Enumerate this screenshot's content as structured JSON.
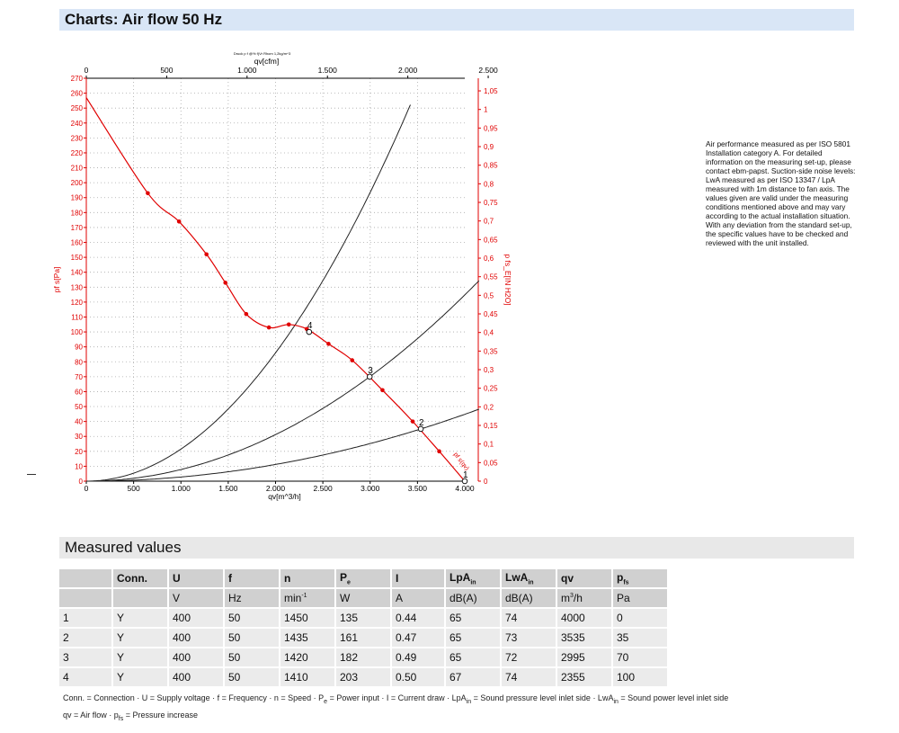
{
  "header": {
    "title": "Charts: Air flow 50 Hz"
  },
  "chart_data": {
    "type": "line",
    "top_caption": "Druck p f @% f(Vr Rhom 1,2kg/m^3",
    "xlabel": "qv[m^3/h]",
    "x2label": "qv[cfm]",
    "ylabel": "pf s[Pa]",
    "y2label": "p fs_E[IN H2O]",
    "xlim": [
      0,
      4000
    ],
    "ylim": [
      0,
      270
    ],
    "xticks": [
      0,
      500,
      1000,
      1500,
      2000,
      2500,
      3000,
      3500,
      4000
    ],
    "xticklabels": [
      "0",
      "500",
      "1.000",
      "1.500",
      "2.000",
      "2.500",
      "3.000",
      "3.500",
      "4.000"
    ],
    "x2ticks": [
      0,
      500,
      1000,
      1500,
      2000,
      2500
    ],
    "x2ticklabels": [
      "0",
      "500",
      "1.000",
      "1.500",
      "2.000",
      "2.500"
    ],
    "yticks": [
      0,
      10,
      20,
      30,
      40,
      50,
      60,
      70,
      80,
      90,
      100,
      110,
      120,
      130,
      140,
      150,
      160,
      170,
      180,
      190,
      200,
      210,
      220,
      230,
      240,
      250,
      260,
      270
    ],
    "y2ticks": [
      0,
      0.05,
      0.1,
      0.15,
      0.2,
      0.25,
      0.3,
      0.35,
      0.4,
      0.45,
      0.5,
      0.55,
      0.6,
      0.65,
      0.7,
      0.75,
      0.8,
      0.85,
      0.9,
      0.95,
      1,
      1.05
    ],
    "y2ticklabels": [
      "0",
      "0,05",
      "0,1",
      "0,15",
      "0,2",
      "0,25",
      "0,3",
      "0,35",
      "0,4",
      "0,45",
      "0,5",
      "0,55",
      "0,6",
      "0,65",
      "0,7",
      "0,75",
      "0,8",
      "0,85",
      "0,9",
      "0,95",
      "1",
      "1,05"
    ],
    "series": [
      {
        "color": "#e00000",
        "x": [
          0,
          650,
          980,
          1270,
          1470,
          1690,
          1930,
          2140,
          2330,
          2560,
          2810,
          3130,
          3450,
          3730,
          4000
        ],
        "y": [
          257,
          193,
          174,
          152,
          133,
          112,
          103,
          105,
          102,
          92,
          81,
          61,
          40,
          20,
          0
        ]
      }
    ],
    "system_curves": [
      {
        "color": "#222222",
        "k": 2.15e-05,
        "xmax": 3800
      },
      {
        "color": "#222222",
        "k": 7.8e-06,
        "xmax": 4150
      },
      {
        "color": "#222222",
        "k": 2.8e-06,
        "xmax": 4150
      }
    ],
    "operating_points": [
      {
        "label": "1",
        "x": 4000,
        "y": 0
      },
      {
        "label": "2",
        "x": 3535,
        "y": 35
      },
      {
        "label": "3",
        "x": 2995,
        "y": 70
      },
      {
        "label": "4",
        "x": 2355,
        "y": 100
      }
    ],
    "curve_label": "pf s(qv)",
    "grid": true
  },
  "note": "Air performance measured as per ISO 5801 Installation category A. For detailed information on the measuring set-up, please contact ebm-papst. Suction-side noise levels: LwA measured as per ISO 13347 / LpA measured with 1m distance to fan axis. The values given are valid under the measuring conditions mentioned above and may vary according to the actual installation situation. With any deviation from the standard set-up, the specific values have to be checked and reviewed with the unit installed.",
  "measured": {
    "title": "Measured values",
    "headers": [
      "",
      "Conn.",
      "U",
      "f",
      "n",
      "P",
      "I",
      "LpA",
      "LwA",
      "qv",
      "p"
    ],
    "header_subs": [
      "",
      "",
      "",
      "",
      "",
      "e",
      "",
      "in",
      "in",
      "",
      "fs"
    ],
    "units": [
      "",
      "",
      "V",
      "Hz",
      "min",
      "W",
      "A",
      "dB(A)",
      "dB(A)",
      "m",
      "Pa"
    ],
    "unit_sups": [
      "",
      "",
      "",
      "",
      "-1",
      "",
      "",
      "",
      "",
      "3",
      ""
    ],
    "unit_tails": [
      "",
      "",
      "",
      "",
      "",
      "",
      "",
      "",
      "",
      "/h",
      ""
    ],
    "rows": [
      [
        "1",
        "Y",
        "400",
        "50",
        "1450",
        "135",
        "0.44",
        "65",
        "74",
        "4000",
        "0"
      ],
      [
        "2",
        "Y",
        "400",
        "50",
        "1435",
        "161",
        "0.47",
        "65",
        "73",
        "3535",
        "35"
      ],
      [
        "3",
        "Y",
        "400",
        "50",
        "1420",
        "182",
        "0.49",
        "65",
        "72",
        "2995",
        "70"
      ],
      [
        "4",
        "Y",
        "400",
        "50",
        "1410",
        "203",
        "0.50",
        "67",
        "74",
        "2355",
        "100"
      ]
    ]
  },
  "footer": {
    "line1a": "Conn. = Connection · U = Supply voltage · f = Frequency · n = Speed · P",
    "line1a_sub": "e",
    "line1b": " = Power input · I = Current draw · LpA",
    "line1b_sub": "in",
    "line1c": " = Sound pressure level inlet side · LwA",
    "line1c_sub": "in",
    "line1d": " = Sound power level inlet side",
    "line2a": "qv = Air flow · p",
    "line2a_sub": "fs",
    "line2b": " = Pressure increase"
  }
}
